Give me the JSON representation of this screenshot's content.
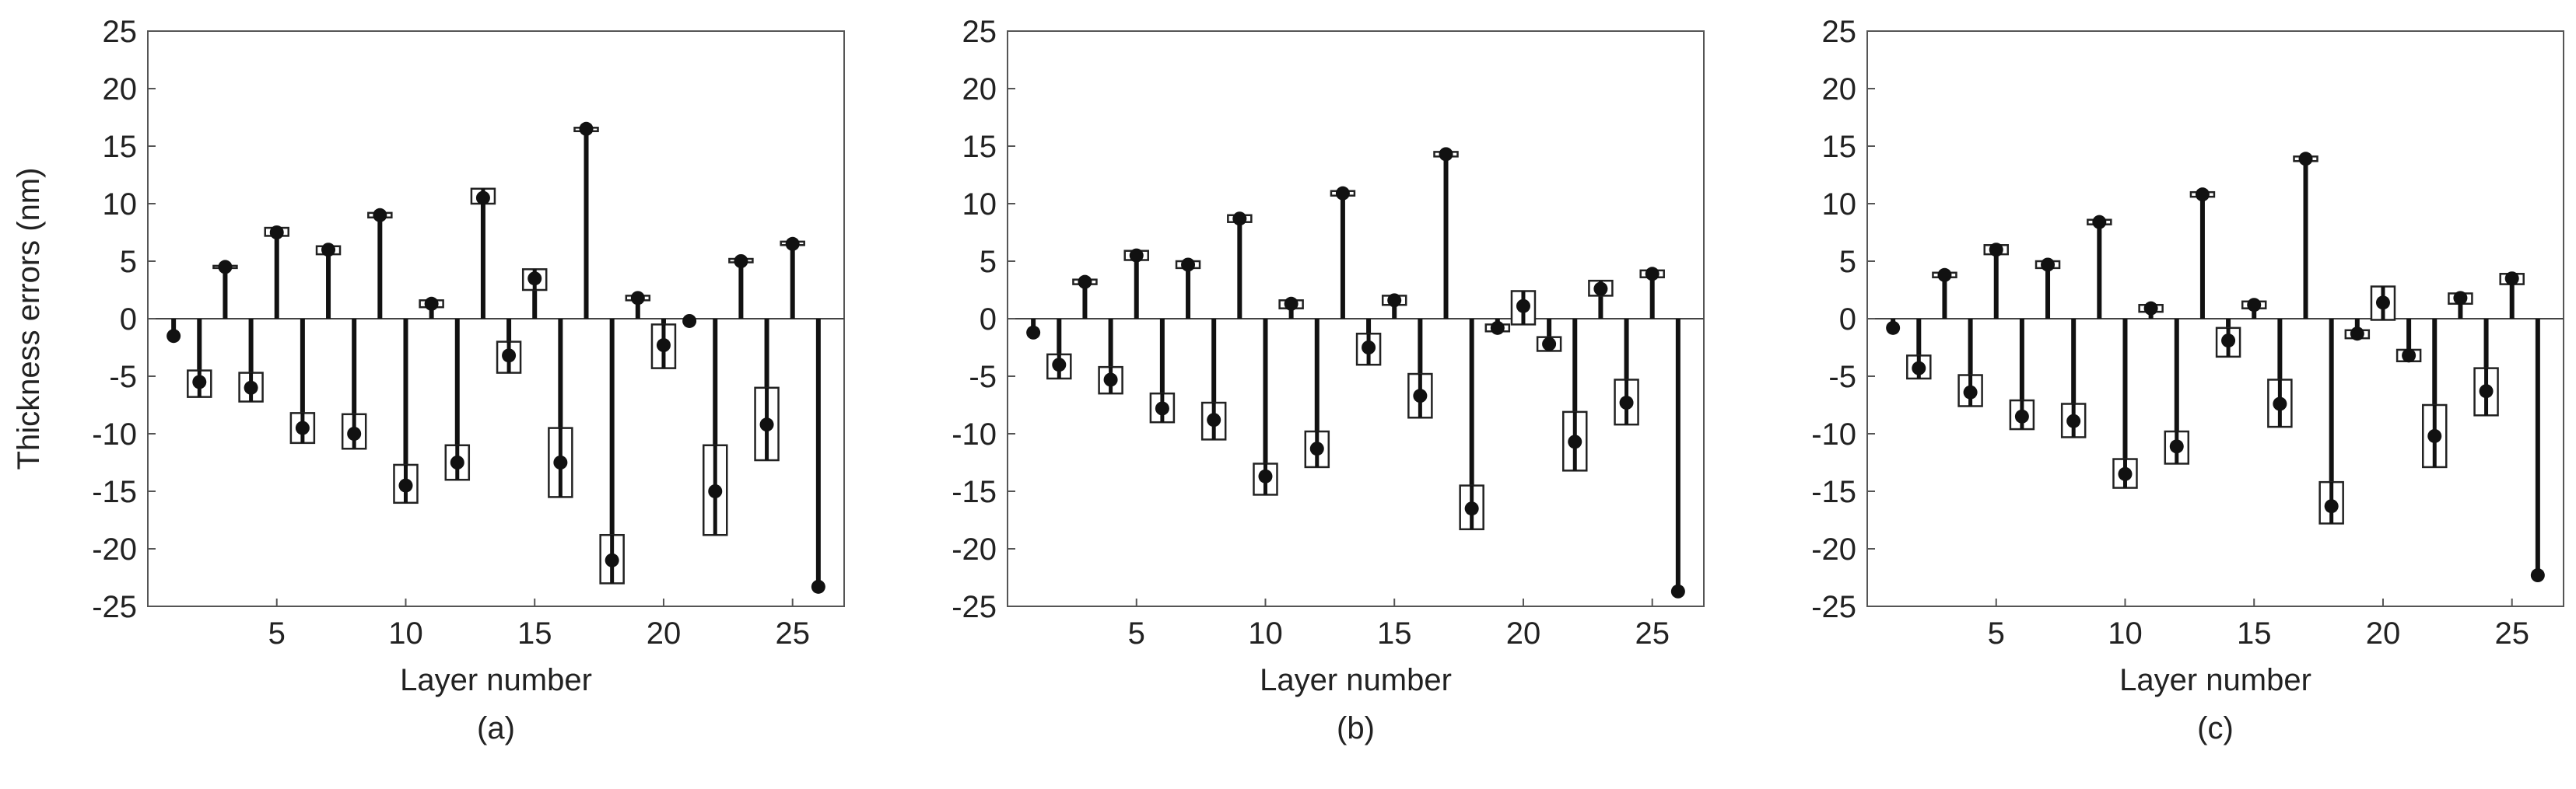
{
  "figure": {
    "common": {
      "ylabel": "Thickness errors (nm)",
      "xlabel": "Layer number",
      "yticks": [
        25,
        20,
        15,
        10,
        5,
        0,
        -5,
        -10,
        -15,
        -20,
        -25
      ],
      "xticks": [
        5,
        10,
        15,
        20,
        25
      ],
      "ylim": [
        -25,
        25
      ],
      "xlim": [
        0,
        27
      ]
    }
  },
  "chart_data": [
    {
      "type": "bar",
      "caption": "(a)",
      "xlabel": "Layer number",
      "ylabel": "Thickness errors (nm)",
      "xlim": [
        0,
        27
      ],
      "ylim": [
        -25,
        25
      ],
      "x": [
        1,
        2,
        3,
        4,
        5,
        6,
        7,
        8,
        9,
        10,
        11,
        12,
        13,
        14,
        15,
        16,
        17,
        18,
        19,
        20,
        21,
        22,
        23,
        24,
        25,
        26
      ],
      "values": [
        -1.5,
        -5.5,
        4.5,
        -6,
        7.5,
        -9.5,
        6,
        -10,
        9,
        -14.5,
        1.3,
        -12.5,
        10.5,
        -3.2,
        3.5,
        -12.5,
        16.5,
        -21,
        1.8,
        -2.3,
        -0.2,
        -15,
        5,
        -9.2,
        6.5,
        -23.3
      ],
      "box_low": [
        -1.5,
        -6.8,
        4.4,
        -7.2,
        7.2,
        -10.8,
        5.6,
        -11.3,
        8.8,
        -16,
        1,
        -14,
        10,
        -4.7,
        2.5,
        -15.5,
        16.3,
        -23,
        1.6,
        -4.3,
        -0.2,
        -18.8,
        4.9,
        -12.3,
        6.4,
        -23.3
      ],
      "box_high": [
        -1.5,
        -4.5,
        4.6,
        -4.7,
        7.9,
        -8.2,
        6.3,
        -8.3,
        9.2,
        -12.7,
        1.6,
        -11,
        11.3,
        -2,
        4.3,
        -9.5,
        16.6,
        -18.8,
        2,
        -0.5,
        -0.2,
        -11,
        5.2,
        -6,
        6.7,
        -23.3
      ]
    },
    {
      "type": "bar",
      "caption": "(b)",
      "xlabel": "Layer number",
      "ylabel": "Thickness errors (nm)",
      "xlim": [
        0,
        27
      ],
      "ylim": [
        -25,
        25
      ],
      "x": [
        1,
        2,
        3,
        4,
        5,
        6,
        7,
        8,
        9,
        10,
        11,
        12,
        13,
        14,
        15,
        16,
        17,
        18,
        19,
        20,
        21,
        22,
        23,
        24,
        25,
        26
      ],
      "values": [
        -1.2,
        -4,
        3.2,
        -5.3,
        5.5,
        -7.8,
        4.7,
        -8.8,
        8.7,
        -13.7,
        1.3,
        -11.3,
        10.9,
        -2.5,
        1.6,
        -6.7,
        14.3,
        -16.5,
        -0.8,
        1.1,
        -2.2,
        -10.7,
        2.6,
        -7.3,
        3.9,
        -23.7
      ],
      "box_low": [
        -1.2,
        -5.2,
        3,
        -6.5,
        5.1,
        -9,
        4.4,
        -10.5,
        8.4,
        -15.3,
        0.9,
        -12.9,
        10.7,
        -4,
        1.2,
        -8.6,
        14.1,
        -18.3,
        -1.1,
        -0.5,
        -2.8,
        -13.2,
        2,
        -9.2,
        3.6,
        -23.7
      ],
      "box_high": [
        -1.2,
        -3.1,
        3.4,
        -4.2,
        5.9,
        -6.5,
        5,
        -7.3,
        9,
        -12.6,
        1.6,
        -9.8,
        11.1,
        -1.3,
        2,
        -4.8,
        14.5,
        -14.5,
        -0.5,
        2.4,
        -1.6,
        -8.1,
        3.3,
        -5.3,
        4.2,
        -23.7
      ]
    },
    {
      "type": "bar",
      "caption": "(c)",
      "xlabel": "Layer number",
      "ylabel": "Thickness errors (nm)",
      "xlim": [
        0,
        27
      ],
      "ylim": [
        -25,
        25
      ],
      "x": [
        1,
        2,
        3,
        4,
        5,
        6,
        7,
        8,
        9,
        10,
        11,
        12,
        13,
        14,
        15,
        16,
        17,
        18,
        19,
        20,
        21,
        22,
        23,
        24,
        25,
        26
      ],
      "values": [
        -0.8,
        -4.3,
        3.8,
        -6.4,
        6,
        -8.5,
        4.7,
        -8.9,
        8.4,
        -13.5,
        0.9,
        -11.1,
        10.8,
        -1.9,
        1.2,
        -7.4,
        13.9,
        -16.3,
        -1.3,
        1.4,
        -3.2,
        -10.2,
        1.8,
        -6.3,
        3.5,
        -22.3
      ],
      "box_low": [
        -0.8,
        -5.2,
        3.6,
        -7.6,
        5.6,
        -9.6,
        4.4,
        -10.3,
        8.2,
        -14.7,
        0.6,
        -12.6,
        10.6,
        -3.3,
        0.9,
        -9.4,
        13.7,
        -17.8,
        -1.7,
        -0.1,
        -3.7,
        -12.9,
        1.3,
        -8.4,
        3,
        -22.3
      ],
      "box_high": [
        -0.8,
        -3.2,
        4,
        -4.9,
        6.4,
        -7.1,
        5,
        -7.4,
        8.6,
        -12.2,
        1.2,
        -9.8,
        11,
        -0.8,
        1.5,
        -5.3,
        14.1,
        -14.2,
        -1,
        2.8,
        -2.7,
        -7.5,
        2.2,
        -4.3,
        3.9,
        -22.3
      ]
    }
  ]
}
